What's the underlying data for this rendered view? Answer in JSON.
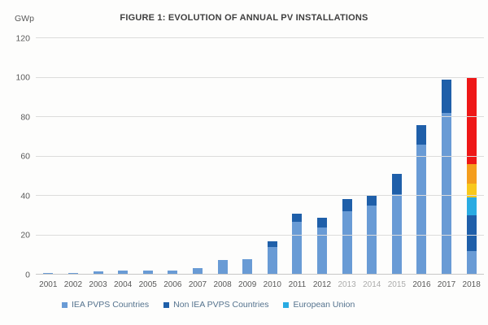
{
  "figure": {
    "title": "FIGURE 1: EVOLUTION OF ANNUAL PV INSTALLATIONS",
    "y_axis_unit": "GWp"
  },
  "chart_data": {
    "type": "bar",
    "stacked": true,
    "title": "FIGURE 1: EVOLUTION OF ANNUAL PV INSTALLATIONS",
    "ylabel": "GWp",
    "xlabel": "",
    "ylim": [
      0,
      120
    ],
    "yticks": [
      0,
      20,
      40,
      60,
      80,
      100,
      120
    ],
    "grid": "horizontal",
    "legend_position": "bottom",
    "categories": [
      "2001",
      "2002",
      "2003",
      "2004",
      "2005",
      "2006",
      "2007",
      "2008",
      "2009",
      "2010",
      "2011",
      "2012",
      "2013",
      "2014",
      "2015",
      "2016",
      "2017",
      "2018"
    ],
    "faded_category_indices": [
      12,
      13,
      14
    ],
    "series": [
      {
        "name": "IEA PVPS Countries",
        "color": "#699bd5",
        "in_legend": true,
        "values": [
          1,
          1,
          1.5,
          2,
          2,
          2,
          3.5,
          7.5,
          8,
          14,
          27,
          24,
          32,
          35,
          41,
          66,
          82,
          12
        ]
      },
      {
        "name": "Non IEA PVPS Countries",
        "color": "#1f5fa9",
        "in_legend": true,
        "values": [
          0,
          0,
          0,
          0,
          0,
          0,
          0,
          0,
          0,
          3,
          4,
          5,
          6.5,
          5,
          10,
          10,
          17,
          18
        ]
      },
      {
        "name": "European Union",
        "color": "#29abe2",
        "in_legend": true,
        "values": [
          0,
          0,
          0,
          0,
          0,
          0,
          0,
          0,
          0,
          0,
          0,
          0,
          0,
          0,
          0,
          0,
          0,
          9
        ]
      },
      {
        "name": "",
        "color": "#f8c81c",
        "in_legend": false,
        "values": [
          0,
          0,
          0,
          0,
          0,
          0,
          0,
          0,
          0,
          0,
          0,
          0,
          0,
          0,
          0,
          0,
          0,
          7
        ]
      },
      {
        "name": "",
        "color": "#f49d1d",
        "in_legend": false,
        "values": [
          0,
          0,
          0,
          0,
          0,
          0,
          0,
          0,
          0,
          0,
          0,
          0,
          0,
          0,
          0,
          0,
          0,
          10
        ]
      },
      {
        "name": "",
        "color": "#ee1717",
        "in_legend": false,
        "values": [
          0,
          0,
          0,
          0,
          0,
          0,
          0,
          0,
          0,
          0,
          0,
          0,
          0,
          0,
          0,
          0,
          0,
          44
        ]
      }
    ],
    "totals_by_year": [
      1,
      1,
      1.5,
      2,
      2,
      2,
      3.5,
      7.5,
      8,
      17,
      31,
      29,
      38.5,
      40,
      51,
      76,
      99,
      100
    ]
  }
}
